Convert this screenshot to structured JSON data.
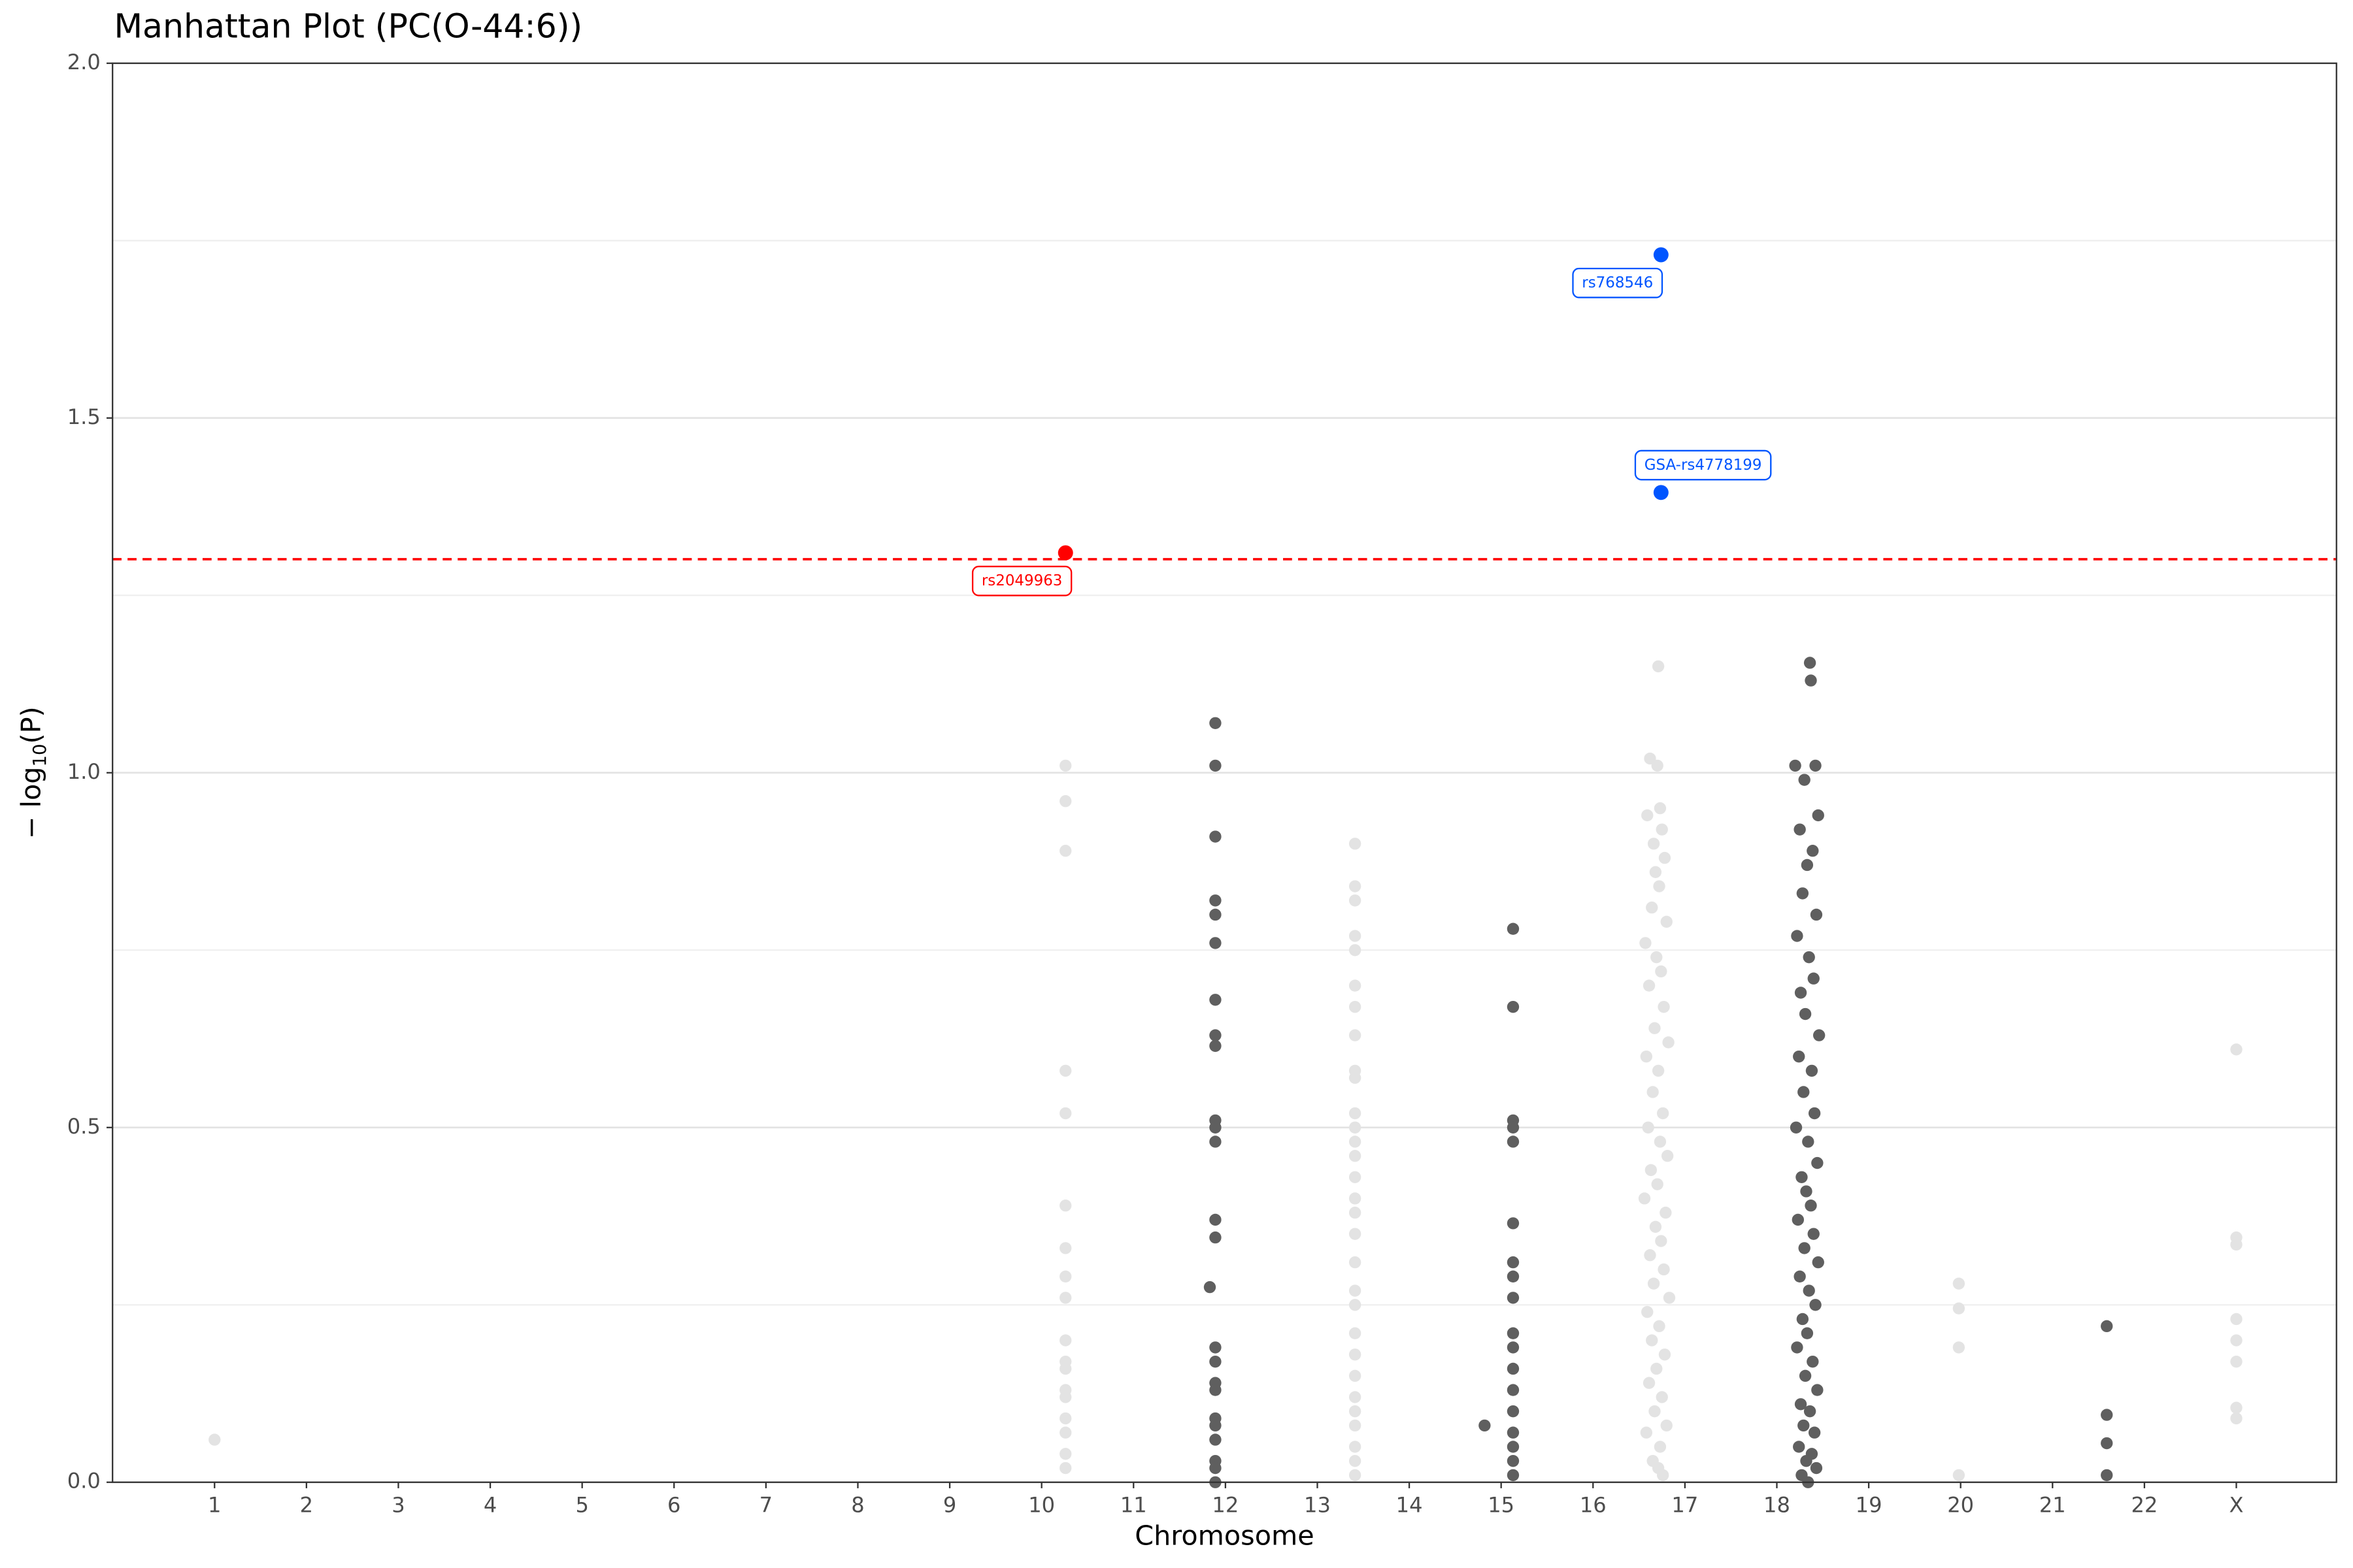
{
  "chart_data": {
    "type": "scatter",
    "title": "Manhattan Plot (PC(O-44:6))",
    "x_label": "Chromosome",
    "y_label": [
      "− log",
      "10",
      "(P)"
    ],
    "xlim": [
      -0.11,
      24.09
    ],
    "xticks": [
      1,
      2,
      3,
      4,
      5,
      6,
      7,
      8,
      9,
      10,
      11,
      12,
      13,
      14,
      15,
      16,
      17,
      18,
      19,
      20,
      21,
      22,
      {
        "value": 23,
        "label": "X"
      }
    ],
    "ylim": [
      0,
      2
    ],
    "yticks": [
      {
        "value": 0,
        "label": "0.0"
      },
      0.5,
      {
        "value": 1,
        "label": "1.0"
      },
      1.5,
      {
        "value": 2,
        "label": "2.0"
      }
    ],
    "grid": true,
    "threshold": 1.301,
    "threshold_color": "#ff0000",
    "series": [
      {
        "color": "#e3e3e3",
        "x": [
          1.0,
          10.26,
          10.26,
          10.26,
          10.26,
          10.26,
          10.26,
          10.26,
          10.26,
          10.26,
          10.26,
          10.26,
          10.26,
          10.26,
          10.26,
          10.26,
          10.26,
          10.26,
          10.26,
          13.41,
          13.41,
          13.41,
          13.41,
          13.41,
          13.41,
          13.41,
          13.41,
          13.41,
          13.41,
          13.41,
          13.41,
          13.41,
          13.41,
          13.41,
          13.41,
          13.41,
          13.41,
          13.41,
          13.41,
          13.41,
          13.41,
          13.41,
          13.41,
          13.41,
          13.41,
          13.41,
          13.41,
          13.41,
          13.41,
          16.71,
          16.62,
          16.7,
          16.73,
          16.59,
          16.75,
          16.66,
          16.78,
          16.68,
          16.72,
          16.64,
          16.8,
          16.57,
          16.69,
          16.74,
          16.61,
          16.77,
          16.67,
          16.82,
          16.58,
          16.71,
          16.65,
          16.76,
          16.6,
          16.73,
          16.81,
          16.63,
          16.7,
          16.56,
          16.79,
          16.68,
          16.74,
          16.62,
          16.77,
          16.66,
          16.83,
          16.59,
          16.72,
          16.64,
          16.78,
          16.69,
          16.61,
          16.75,
          16.67,
          16.8,
          16.58,
          16.73,
          16.65,
          16.71,
          16.76,
          19.98,
          19.98,
          19.98,
          19.98,
          23.0,
          23.0,
          23.0,
          23.0,
          23.0,
          23.0,
          23.0,
          23.0
        ],
        "values": [
          0.06,
          1.01,
          0.96,
          0.89,
          0.58,
          0.52,
          0.39,
          0.33,
          0.29,
          0.26,
          0.2,
          0.17,
          0.16,
          0.13,
          0.12,
          0.09,
          0.07,
          0.04,
          0.02,
          0.9,
          0.84,
          0.82,
          0.77,
          0.75,
          0.7,
          0.67,
          0.63,
          0.58,
          0.57,
          0.52,
          0.5,
          0.48,
          0.46,
          0.43,
          0.4,
          0.38,
          0.35,
          0.31,
          0.27,
          0.25,
          0.21,
          0.18,
          0.15,
          0.12,
          0.1,
          0.08,
          0.05,
          0.03,
          0.01,
          1.15,
          1.02,
          1.01,
          0.95,
          0.94,
          0.92,
          0.9,
          0.88,
          0.86,
          0.84,
          0.81,
          0.79,
          0.76,
          0.74,
          0.72,
          0.7,
          0.67,
          0.64,
          0.62,
          0.6,
          0.58,
          0.55,
          0.52,
          0.5,
          0.48,
          0.46,
          0.44,
          0.42,
          0.4,
          0.38,
          0.36,
          0.34,
          0.32,
          0.3,
          0.28,
          0.26,
          0.24,
          0.22,
          0.2,
          0.18,
          0.16,
          0.14,
          0.12,
          0.1,
          0.08,
          0.07,
          0.05,
          0.03,
          0.02,
          0.01,
          0.28,
          0.245,
          0.19,
          0.01,
          0.61,
          0.345,
          0.335,
          0.23,
          0.2,
          0.17,
          0.105,
          0.09
        ]
      },
      {
        "color": "#5f5f5f",
        "x": [
          11.89,
          11.89,
          11.89,
          11.89,
          11.89,
          11.89,
          11.89,
          11.89,
          11.89,
          11.89,
          11.89,
          11.89,
          11.89,
          11.89,
          11.89,
          11.89,
          11.89,
          11.89,
          11.89,
          11.89,
          11.89,
          11.89,
          11.89,
          11.89,
          11.83,
          15.13,
          15.13,
          15.13,
          15.13,
          15.13,
          15.13,
          15.13,
          15.13,
          15.13,
          15.13,
          15.13,
          15.13,
          15.13,
          15.13,
          15.13,
          15.13,
          15.13,
          15.13,
          14.82,
          18.36,
          18.37,
          18.2,
          18.42,
          18.3,
          18.45,
          18.25,
          18.39,
          18.33,
          18.28,
          18.43,
          18.22,
          18.35,
          18.4,
          18.26,
          18.31,
          18.46,
          18.24,
          18.38,
          18.29,
          18.41,
          18.21,
          18.34,
          18.44,
          18.27,
          18.32,
          18.37,
          18.23,
          18.4,
          18.3,
          18.45,
          18.25,
          18.35,
          18.42,
          18.28,
          18.33,
          18.22,
          18.39,
          18.31,
          18.44,
          18.26,
          18.36,
          18.29,
          18.41,
          18.24,
          18.38,
          18.32,
          18.43,
          18.27,
          18.34,
          21.59,
          21.59,
          21.59,
          21.59
        ],
        "values": [
          1.07,
          1.01,
          0.91,
          0.82,
          0.8,
          0.76,
          0.68,
          0.63,
          0.615,
          0.51,
          0.5,
          0.48,
          0.37,
          0.345,
          0.19,
          0.17,
          0.14,
          0.13,
          0.09,
          0.08,
          0.06,
          0.03,
          0.02,
          0.0,
          0.275,
          0.78,
          0.67,
          0.51,
          0.5,
          0.48,
          0.365,
          0.31,
          0.29,
          0.26,
          0.21,
          0.19,
          0.16,
          0.13,
          0.1,
          0.07,
          0.05,
          0.03,
          0.01,
          0.08,
          1.155,
          1.13,
          1.01,
          1.01,
          0.99,
          0.94,
          0.92,
          0.89,
          0.87,
          0.83,
          0.8,
          0.77,
          0.74,
          0.71,
          0.69,
          0.66,
          0.63,
          0.6,
          0.58,
          0.55,
          0.52,
          0.5,
          0.48,
          0.45,
          0.43,
          0.41,
          0.39,
          0.37,
          0.35,
          0.33,
          0.31,
          0.29,
          0.27,
          0.25,
          0.23,
          0.21,
          0.19,
          0.17,
          0.15,
          0.13,
          0.11,
          0.1,
          0.08,
          0.07,
          0.05,
          0.04,
          0.03,
          0.02,
          0.01,
          0.0,
          0.22,
          0.095,
          0.055,
          0.01
        ]
      }
    ],
    "annotations": [
      {
        "label": "rs2049963",
        "x": 10.26,
        "y": 1.31,
        "color": "#ff0000"
      },
      {
        "label": "rs768546",
        "x": 16.74,
        "y": 1.73,
        "color": "#0055ff"
      },
      {
        "label": "GSA-rs4778199",
        "x": 16.74,
        "y": 1.395,
        "color": "#0055ff"
      }
    ]
  }
}
